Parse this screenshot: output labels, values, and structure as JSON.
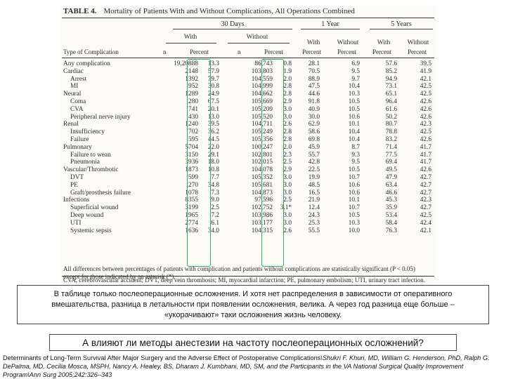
{
  "table": {
    "title_label": "TABLE 4.",
    "title_text": "Mortality of Patients With and Without Complications, All Operations Combined",
    "groups": {
      "d30": "30 Days",
      "y1": "1 Year",
      "y5": "5 Years"
    },
    "sub": {
      "with": "With",
      "without": "Without"
    },
    "col_type": "Type of Complication",
    "col_n": "n",
    "col_percent": "Percent",
    "rows": [
      {
        "name": "Any complication",
        "indent": false,
        "v": [
          "19,20888",
          "13.3",
          "86,743",
          "0.8",
          "28.1",
          "6.9",
          "57.6",
          "39.5"
        ]
      },
      {
        "name": "Cardiac",
        "indent": false,
        "v": [
          "2148",
          "57.9",
          "103,803",
          "1.9",
          "70.5",
          "9.5",
          "85.2",
          "41.9"
        ]
      },
      {
        "name": "Arrest",
        "indent": true,
        "v": [
          "1392",
          "79.7",
          "104,559",
          "2.0",
          "88.9",
          "9.7",
          "94.9",
          "42.1"
        ]
      },
      {
        "name": "MI",
        "indent": true,
        "v": [
          "952",
          "30.8",
          "104,999",
          "2.8",
          "47.5",
          "10.4",
          "73.1",
          "42.5"
        ]
      },
      {
        "name": "Neural",
        "indent": false,
        "v": [
          "1289",
          "24.9",
          "104,662",
          "2.8",
          "44.6",
          "10.3",
          "65.1",
          "42.5"
        ]
      },
      {
        "name": "Coma",
        "indent": true,
        "v": [
          "280",
          "67.5",
          "105,669",
          "2.9",
          "91.8",
          "10.5",
          "96.4",
          "42.6"
        ]
      },
      {
        "name": "CVA",
        "indent": true,
        "v": [
          "741",
          "20.1",
          "105,209",
          "3.0",
          "40.9",
          "10.5",
          "61.6",
          "42.6"
        ]
      },
      {
        "name": "Peripheral nerve injury",
        "indent": true,
        "v": [
          "430",
          "13.0",
          "105,520",
          "3.0",
          "30.0",
          "10.6",
          "50.2",
          "42.6"
        ]
      },
      {
        "name": "Renal",
        "indent": false,
        "v": [
          "1240",
          "39.5",
          "104,711",
          "2.6",
          "62.9",
          "10.1",
          "80.7",
          "42.3"
        ]
      },
      {
        "name": "Insufficiency",
        "indent": true,
        "v": [
          "702",
          "36.2",
          "105,249",
          "2.8",
          "58.6",
          "10.4",
          "78.8",
          "42.5"
        ]
      },
      {
        "name": "Failure",
        "indent": true,
        "v": [
          "595",
          "44.5",
          "105,356",
          "2.8",
          "69.8",
          "10.4",
          "83.2",
          "42.6"
        ]
      },
      {
        "name": "Pulmonary",
        "indent": false,
        "v": [
          "5704",
          "22.0",
          "100,247",
          "2.0",
          "45.9",
          "8.7",
          "71.4",
          "41.7"
        ]
      },
      {
        "name": "Failure to wean",
        "indent": true,
        "v": [
          "3150",
          "29.1",
          "102,801",
          "2.3",
          "55.7",
          "9.3",
          "77.5",
          "41.7"
        ]
      },
      {
        "name": "Pneumonia",
        "indent": true,
        "v": [
          "3936",
          "18.0",
          "102,015",
          "2.5",
          "42.8",
          "9.5",
          "69.4",
          "41.7"
        ]
      },
      {
        "name": "Vascular/Thrombotic",
        "indent": false,
        "v": [
          "1873",
          "10.8",
          "104,078",
          "2.9",
          "22.5",
          "10.5",
          "49.5",
          "42.6"
        ]
      },
      {
        "name": "DVT",
        "indent": true,
        "v": [
          "599",
          "7.7",
          "105,352",
          "3.0",
          "19.9",
          "10.7",
          "47.9",
          "42.7"
        ]
      },
      {
        "name": "PE",
        "indent": true,
        "v": [
          "270",
          "34.8",
          "105,681",
          "3.0",
          "48.5",
          "10.6",
          "63.4",
          "42.7"
        ]
      },
      {
        "name": "Graft/prosthesis failure",
        "indent": true,
        "v": [
          "1078",
          "7.3",
          "104,873",
          "3.0",
          "16.5",
          "10.6",
          "46.6",
          "42.7"
        ]
      },
      {
        "name": "Infections",
        "indent": false,
        "v": [
          "8355",
          "9.0",
          "97,596",
          "2.5",
          "21.9",
          "10.1",
          "45.3",
          "42.3"
        ]
      },
      {
        "name": "Superficial wound",
        "indent": true,
        "v": [
          "3199",
          "2.5",
          "102,752",
          "3.1*",
          "12.4",
          "10.7",
          "35.9",
          "42.7"
        ]
      },
      {
        "name": "Deep wound",
        "indent": true,
        "v": [
          "1965",
          "7.2",
          "103,986",
          "3.0",
          "24.3",
          "10.5",
          "53.4",
          "42.5"
        ]
      },
      {
        "name": "UTI",
        "indent": true,
        "v": [
          "2774",
          "6.1",
          "103,177",
          "3.0",
          "25.3",
          "10.3",
          "58.4",
          "42.4"
        ]
      },
      {
        "name": "Systemic sepsis",
        "indent": true,
        "v": [
          "1636",
          "34.0",
          "104,315",
          "2.6",
          "55.5",
          "10.0",
          "76.3",
          "42.1"
        ]
      }
    ],
    "footnote_1": "All differences between percentages of patients with complication and patients without complications are statistically significant (P < 0.05) except for those indicated by an asterisk (*).",
    "footnote_2": "CVA, cerebrovascular accident; DVT, deep vein thrombosis; MI, myocardial infarction; PE, pulmonary embolism; UTI, urinary tract infection."
  },
  "note_text": "В таблице только послеоперационные осложнения. И хотя нет распределения в зависимости от оперативного вмешательства, разница в летальности при появлении осложнения, велика. А через год разница еще больше – «укорачивают» таки осложнения жизнь человеку.",
  "question_text": "А влияют ли методы анестезии на частоту послеоперационных осложнений?",
  "citation": {
    "title": "Determinants of Long-Term Survival After Major Surgery and the Adverse Effect of Postoperative Complications",
    "authors": "\\Shukri F. Khuri, MD, William G. Henderson, PhD, Ralph G. DePalma, MD, Cecilia Mosca, MSPH, Nancy A. Healey, BS, Dharam J. Kumbhani, MD, SM, and the Participants in the VA National Surgical Quality Improvement Program\\Ann Surg 2005;242:326–343"
  },
  "colors": {
    "highlight": "#3aa65c",
    "border": "#444444"
  }
}
